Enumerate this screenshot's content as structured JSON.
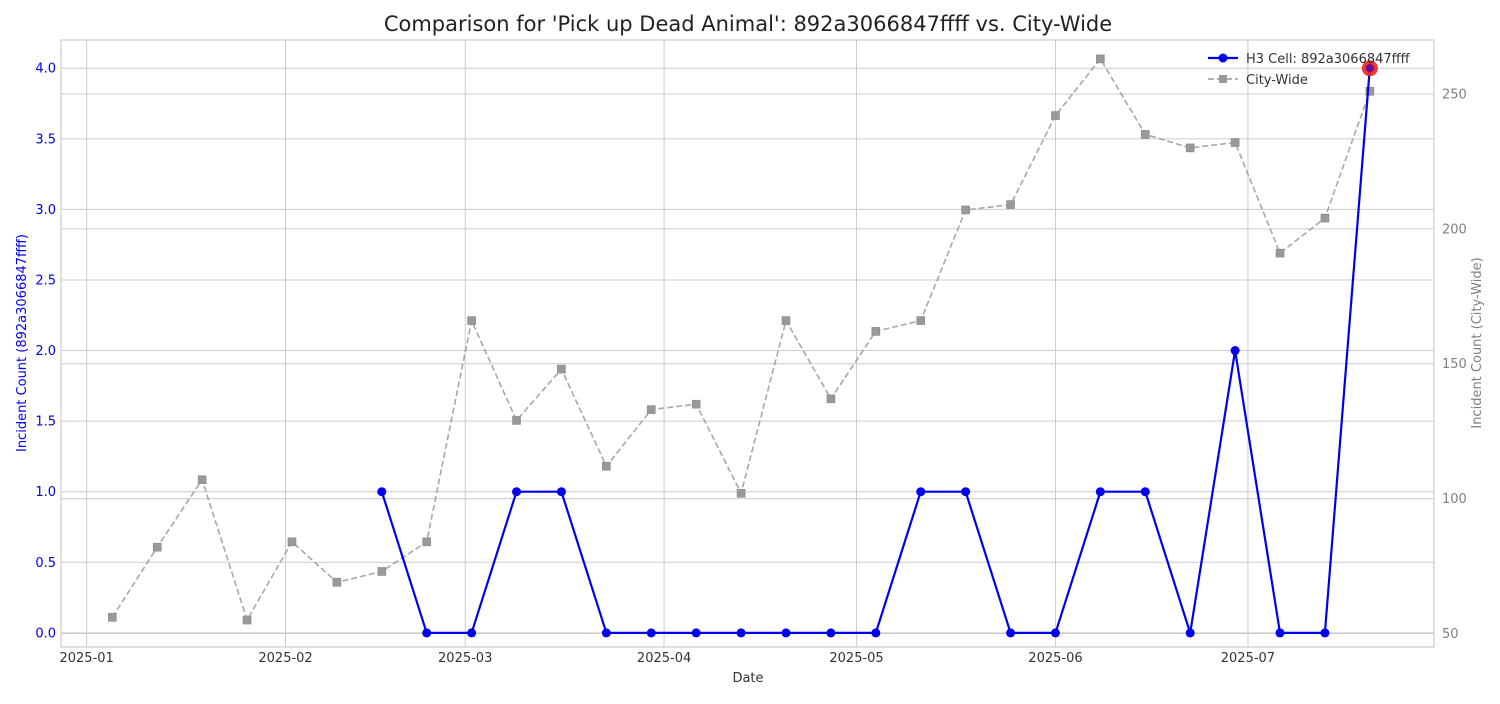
{
  "colors": {
    "primary": "#0000ee",
    "secondary": "#999999",
    "highlight": "#f02020",
    "grid": "#cccccc",
    "frame": "#cccccc",
    "text": "#333333",
    "right_axis_text": "#808080"
  },
  "chart_data": {
    "type": "line",
    "title": "Comparison for 'Pick up Dead Animal': 892a3066847ffff vs. City-Wide",
    "xlabel": "Date",
    "ylabel_left": "Incident Count (892a3066847ffff)",
    "ylabel_right": "Incident Count (City-Wide)",
    "grid": true,
    "legend_position": "top-right",
    "x_ticks": [
      "2025-01-01",
      "2025-02-01",
      "2025-03-01",
      "2025-04-01",
      "2025-05-01",
      "2025-06-01",
      "2025-07-01"
    ],
    "x_tick_labels": [
      "2025-01",
      "2025-02",
      "2025-03",
      "2025-04",
      "2025-05",
      "2025-06",
      "2025-07"
    ],
    "xlim": [
      "2024-12-28",
      "2025-07-30"
    ],
    "y_left": {
      "lim": [
        -0.1,
        4.2
      ],
      "ticks": [
        0.0,
        0.5,
        1.0,
        1.5,
        2.0,
        2.5,
        3.0,
        3.5,
        4.0
      ],
      "tick_labels": [
        "0.0",
        "0.5",
        "1.0",
        "1.5",
        "2.0",
        "2.5",
        "3.0",
        "3.5",
        "4.0"
      ]
    },
    "y_right": {
      "lim": [
        45,
        270
      ],
      "ticks": [
        50,
        100,
        150,
        200,
        250
      ],
      "tick_labels": [
        "50",
        "100",
        "150",
        "200",
        "250"
      ]
    },
    "series": [
      {
        "name": "H3 Cell: 892a3066847ffff",
        "axis": "left",
        "style": "solid",
        "marker": "circle",
        "color": "#0000ee",
        "x": [
          "2025-02-16",
          "2025-02-23",
          "2025-03-02",
          "2025-03-09",
          "2025-03-16",
          "2025-03-23",
          "2025-03-30",
          "2025-04-06",
          "2025-04-13",
          "2025-04-20",
          "2025-04-27",
          "2025-05-04",
          "2025-05-11",
          "2025-05-18",
          "2025-05-25",
          "2025-06-01",
          "2025-06-08",
          "2025-06-15",
          "2025-06-22",
          "2025-06-29",
          "2025-07-06",
          "2025-07-13",
          "2025-07-20"
        ],
        "values": [
          1,
          0,
          0,
          1,
          1,
          0,
          0,
          0,
          0,
          0,
          0,
          0,
          1,
          1,
          0,
          0,
          1,
          1,
          0,
          2,
          0,
          0,
          4
        ]
      },
      {
        "name": "City-Wide",
        "axis": "right",
        "style": "dashed",
        "marker": "square",
        "color": "#999999",
        "x": [
          "2025-01-05",
          "2025-01-12",
          "2025-01-19",
          "2025-01-26",
          "2025-02-02",
          "2025-02-09",
          "2025-02-16",
          "2025-02-23",
          "2025-03-02",
          "2025-03-09",
          "2025-03-16",
          "2025-03-23",
          "2025-03-30",
          "2025-04-06",
          "2025-04-13",
          "2025-04-20",
          "2025-04-27",
          "2025-05-04",
          "2025-05-11",
          "2025-05-18",
          "2025-05-25",
          "2025-06-01",
          "2025-06-08",
          "2025-06-15",
          "2025-06-22",
          "2025-06-29",
          "2025-07-06",
          "2025-07-13",
          "2025-07-20"
        ],
        "values": [
          56,
          82,
          107,
          55,
          84,
          69,
          73,
          84,
          166,
          129,
          148,
          112,
          133,
          135,
          102,
          166,
          137,
          162,
          166,
          207,
          209,
          242,
          263,
          235,
          230,
          232,
          191,
          204,
          251
        ]
      }
    ],
    "highlight": {
      "series": "H3 Cell: 892a3066847ffff",
      "x": "2025-07-20",
      "value": 4
    }
  }
}
